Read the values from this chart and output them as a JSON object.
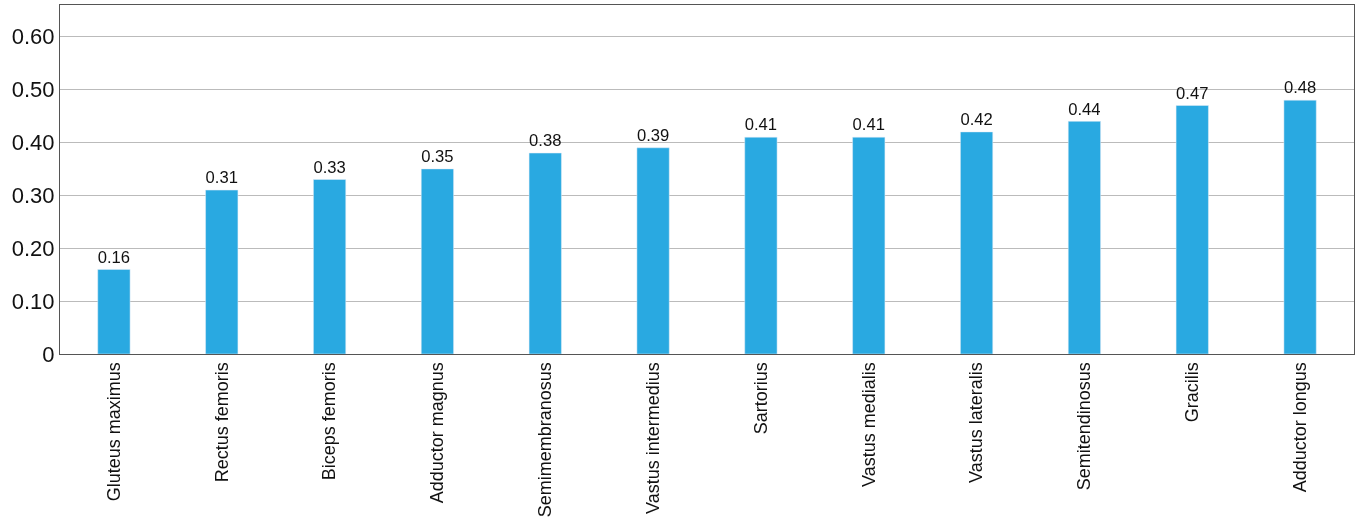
{
  "chart_data": {
    "type": "bar",
    "categories": [
      "Gluteus maximus",
      "Rectus femoris",
      "Biceps femoris",
      "Adductor magnus",
      "Semimembranosus",
      "Vastus intermedius",
      "Sartorius",
      "Vastus medialis",
      "Vastus lateralis",
      "Semitendinosus",
      "Gracilis",
      "Adductor longus"
    ],
    "values": [
      0.16,
      0.31,
      0.33,
      0.35,
      0.38,
      0.39,
      0.41,
      0.41,
      0.42,
      0.44,
      0.47,
      0.48
    ],
    "value_labels": [
      "0.16",
      "0.31",
      "0.33",
      "0.35",
      "0.38",
      "0.39",
      "0.41",
      "0.41",
      "0.42",
      "0.44",
      "0.47",
      "0.48"
    ],
    "color": "#29a9e1",
    "ylim": [
      0,
      0.66
    ],
    "yticks": [
      0,
      {
        "value": 0.1,
        "label": "0.10"
      },
      {
        "value": 0.2,
        "label": "0.20"
      },
      {
        "value": 0.3,
        "label": "0.30"
      },
      {
        "value": 0.4,
        "label": "0.40"
      },
      {
        "value": 0.5,
        "label": "0.50"
      },
      {
        "value": 0.6,
        "label": "0.60"
      }
    ],
    "grid": "y"
  }
}
